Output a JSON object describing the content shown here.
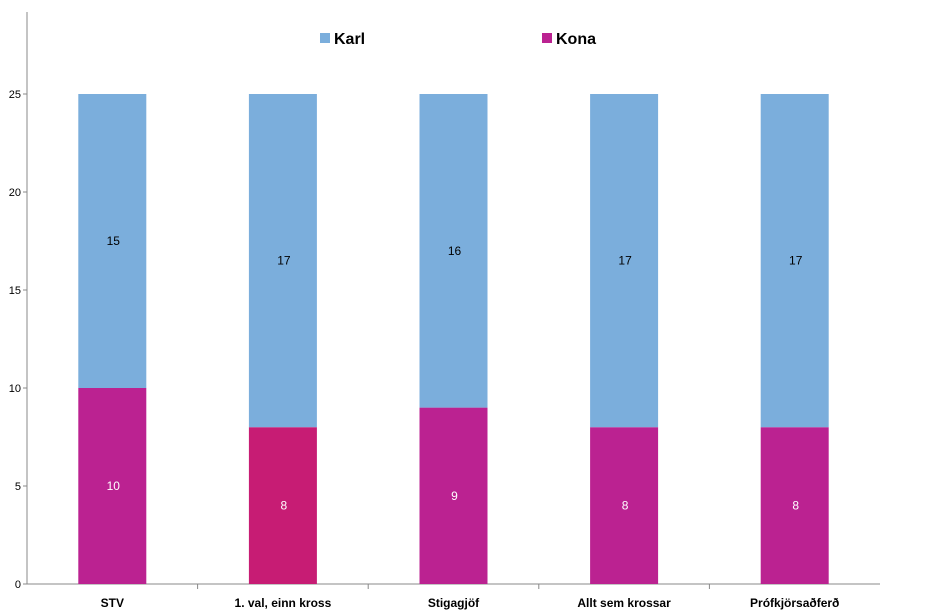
{
  "chart_data": {
    "type": "bar",
    "stacked": true,
    "categories": [
      "STV",
      "1. val, einn kross",
      "Stigagjöf",
      "Allt sem krossar",
      "Prófkjörsaðferð"
    ],
    "series": [
      {
        "name": "Kona",
        "values": [
          10,
          8,
          9,
          8,
          8
        ],
        "color": "#bb2291",
        "label_color": "#ffffff"
      },
      {
        "name": "Karl",
        "values": [
          15,
          17,
          16,
          17,
          17
        ],
        "color": "#7baedc",
        "label_color": "#000000"
      }
    ],
    "bar_colors_override": {
      "1": {
        "0": "#c71c74"
      }
    },
    "ylim": [
      0,
      25
    ],
    "yticks": [
      0,
      5,
      10,
      15,
      20,
      25
    ],
    "title": "",
    "xlabel": "",
    "ylabel": "",
    "grid": false,
    "legend_position": "top"
  }
}
